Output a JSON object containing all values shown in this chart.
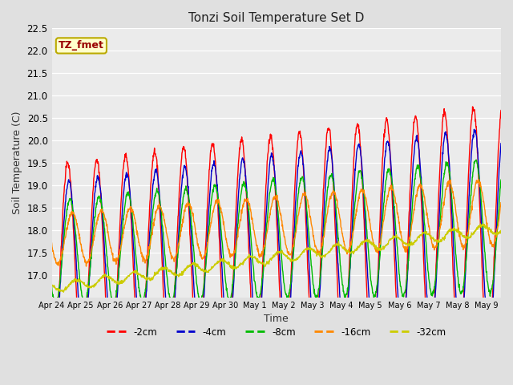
{
  "title": "Tonzi Soil Temperature Set D",
  "xlabel": "Time",
  "ylabel": "Soil Temperature (C)",
  "ylim": [
    16.5,
    22.5
  ],
  "yticks": [
    17.0,
    17.5,
    18.0,
    18.5,
    19.0,
    19.5,
    20.0,
    20.5,
    21.0,
    21.5,
    22.0,
    22.5
  ],
  "fig_bg": "#e0e0e0",
  "plot_bg": "#ebebeb",
  "annotation_text": "TZ_fmet",
  "annotation_bg": "#ffffcc",
  "annotation_border": "#bbaa00",
  "series_colors": {
    "-2cm": "#ff0000",
    "-4cm": "#0000cc",
    "-8cm": "#00bb00",
    "-16cm": "#ff8800",
    "-32cm": "#cccc00"
  },
  "x_tick_labels": [
    "Apr 24",
    "Apr 25",
    "Apr 26",
    "Apr 27",
    "Apr 28",
    "Apr 29",
    "Apr 30",
    "May 1",
    "May 2",
    "May 3",
    "May 4",
    "May 5",
    "May 6",
    "May 7",
    "May 8",
    "May 9"
  ],
  "n_days": 15.5,
  "samples_per_day": 96,
  "series_params": {
    "-2cm": {
      "base_s": 17.25,
      "base_e": 18.0,
      "amp_s": 2.2,
      "amp_e": 2.8,
      "phase": 0.3,
      "noise": 0.04
    },
    "-4cm": {
      "base_s": 17.3,
      "base_e": 18.0,
      "amp_s": 1.75,
      "amp_e": 2.3,
      "phase": 0.34,
      "noise": 0.03
    },
    "-8cm": {
      "base_s": 17.5,
      "base_e": 18.1,
      "amp_s": 1.15,
      "amp_e": 1.5,
      "phase": 0.38,
      "noise": 0.03
    },
    "-16cm": {
      "base_s": 17.8,
      "base_e": 18.4,
      "amp_s": 0.55,
      "amp_e": 0.75,
      "phase": 0.46,
      "noise": 0.03
    },
    "-32cm": {
      "base_s": 16.72,
      "base_e": 18.05,
      "amp_s": 0.1,
      "amp_e": 0.12,
      "phase": 0.6,
      "noise": 0.02
    }
  }
}
